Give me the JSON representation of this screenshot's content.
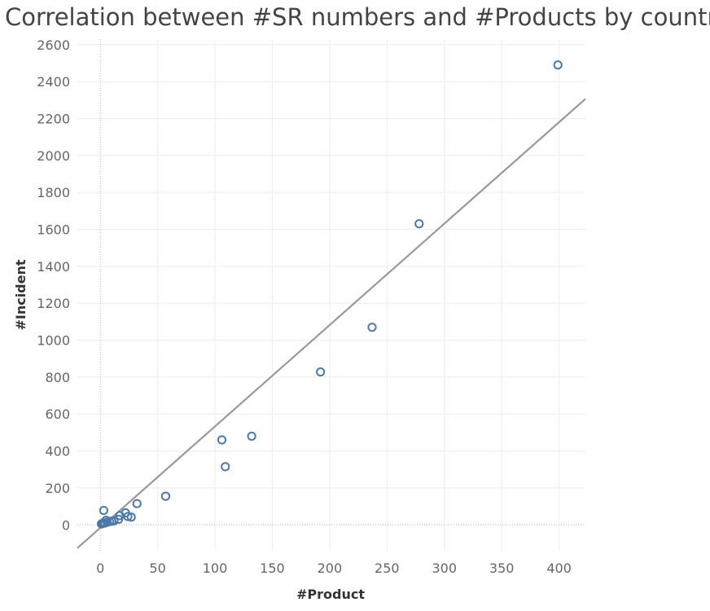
{
  "chart_data": {
    "type": "scatter",
    "title": "Correlation between #SR numbers and #Products by country",
    "xlabel": "#Product",
    "ylabel": "#Incident",
    "xlim": [
      -20,
      423
    ],
    "ylim": [
      -140,
      2630
    ],
    "x_ticks": [
      0,
      50,
      100,
      150,
      200,
      250,
      300,
      350,
      400
    ],
    "y_ticks": [
      0,
      200,
      400,
      600,
      800,
      1000,
      1200,
      1400,
      1600,
      1800,
      2000,
      2200,
      2400,
      2600
    ],
    "grid": true,
    "zero_lines": "dotted",
    "legend": "none",
    "point_style": "hollow-circle",
    "colors": {
      "points": "#4e79a7",
      "trend_line": "#999999",
      "grid": "#ececec",
      "zero_line": "#b5b5b5"
    },
    "points": [
      {
        "x": 1,
        "y": 5
      },
      {
        "x": 2,
        "y": 8
      },
      {
        "x": 3,
        "y": 12
      },
      {
        "x": 3,
        "y": 78
      },
      {
        "x": 4,
        "y": 10
      },
      {
        "x": 5,
        "y": 25
      },
      {
        "x": 6,
        "y": 15
      },
      {
        "x": 8,
        "y": 18
      },
      {
        "x": 10,
        "y": 20
      },
      {
        "x": 12,
        "y": 22
      },
      {
        "x": 16,
        "y": 30
      },
      {
        "x": 17,
        "y": 50
      },
      {
        "x": 22,
        "y": 65
      },
      {
        "x": 24,
        "y": 45
      },
      {
        "x": 27,
        "y": 42
      },
      {
        "x": 32,
        "y": 115
      },
      {
        "x": 57,
        "y": 155
      },
      {
        "x": 106,
        "y": 460
      },
      {
        "x": 109,
        "y": 315
      },
      {
        "x": 132,
        "y": 480
      },
      {
        "x": 192,
        "y": 828
      },
      {
        "x": 237,
        "y": 1070
      },
      {
        "x": 278,
        "y": 1630
      },
      {
        "x": 399,
        "y": 2490
      }
    ],
    "trend_line": {
      "slope": 5.49,
      "intercept": -16
    }
  }
}
